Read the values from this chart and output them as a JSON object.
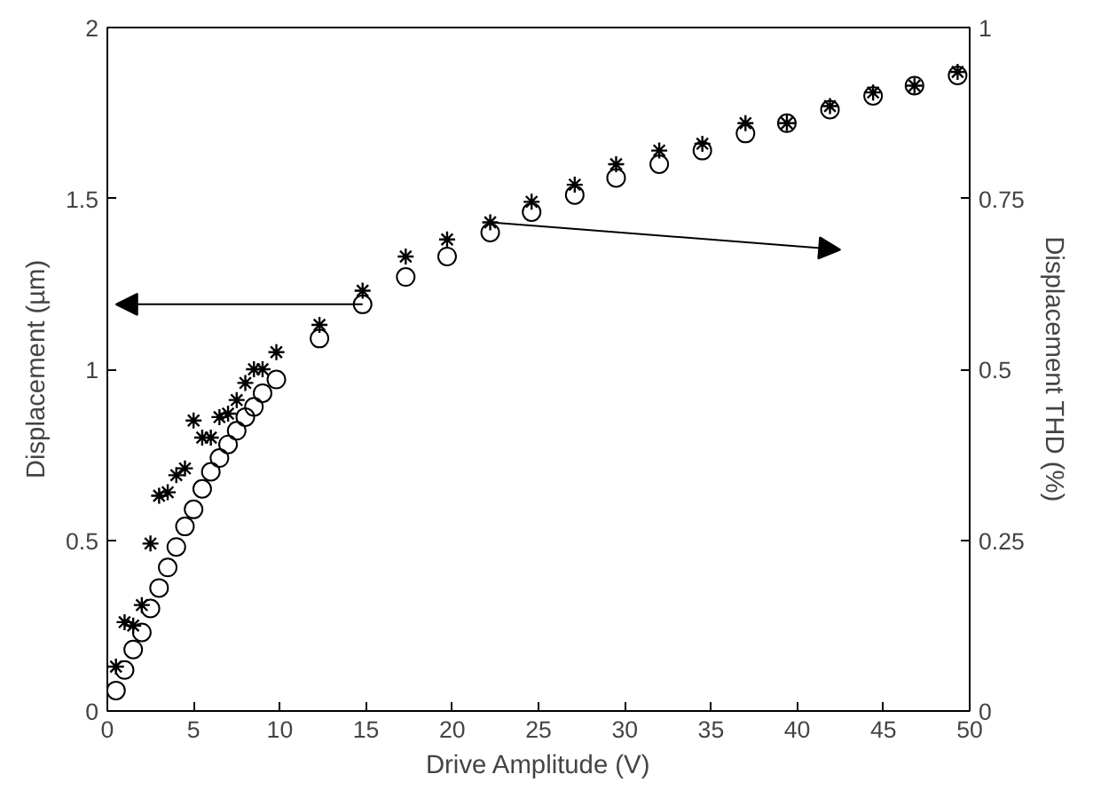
{
  "chart_data": {
    "type": "scatter",
    "xlabel": "Drive Amplitude (V)",
    "ylabel": "Displacement (µm)",
    "y2label": "Displacement THD (%)",
    "x": [
      0.5,
      1,
      1.5,
      2,
      2.5,
      3,
      3.5,
      4,
      4.5,
      5,
      5.5,
      6,
      6.5,
      7,
      7.5,
      8,
      8.5,
      9,
      9.8,
      12.3,
      14.8,
      17.3,
      19.7,
      22.2,
      24.6,
      27.1,
      29.5,
      32,
      34.5,
      37,
      39.4,
      41.9,
      44.4,
      46.8,
      49.3
    ],
    "series": [
      {
        "color": "#000000",
        "marker": "circle",
        "values": [
          0.06,
          0.12,
          0.18,
          0.23,
          0.3,
          0.36,
          0.42,
          0.48,
          0.54,
          0.59,
          0.65,
          0.7,
          0.74,
          0.78,
          0.82,
          0.86,
          0.89,
          0.93,
          0.97,
          1.09,
          1.19,
          1.27,
          1.33,
          1.4,
          1.46,
          1.51,
          1.56,
          1.6,
          1.64,
          1.69,
          1.72,
          1.76,
          1.8,
          1.83,
          1.86
        ]
      },
      {
        "color": "#000000",
        "marker": "cross",
        "axis": "y2",
        "values": [
          0.065,
          0.13,
          0.125,
          0.155,
          0.245,
          0.315,
          0.32,
          0.345,
          0.355,
          0.425,
          0.4,
          0.4,
          0.43,
          0.435,
          0.455,
          0.48,
          0.5,
          0.5,
          0.525,
          0.565,
          0.615,
          0.665,
          0.69,
          0.715,
          0.745,
          0.77,
          0.8,
          0.82,
          0.83,
          0.86,
          0.86,
          0.885,
          0.905,
          0.915,
          0.935
        ]
      }
    ],
    "xlim": [
      0,
      50
    ],
    "xticks": [
      0,
      5,
      10,
      15,
      20,
      25,
      30,
      35,
      40,
      45,
      50
    ],
    "ylim": [
      0,
      2
    ],
    "yticks": [
      0,
      0.5,
      1,
      1.5,
      2
    ],
    "y2lim": [
      0,
      1
    ],
    "y2ticks": [
      0,
      0.25,
      0.5,
      0.75,
      1
    ],
    "grid": false
  }
}
